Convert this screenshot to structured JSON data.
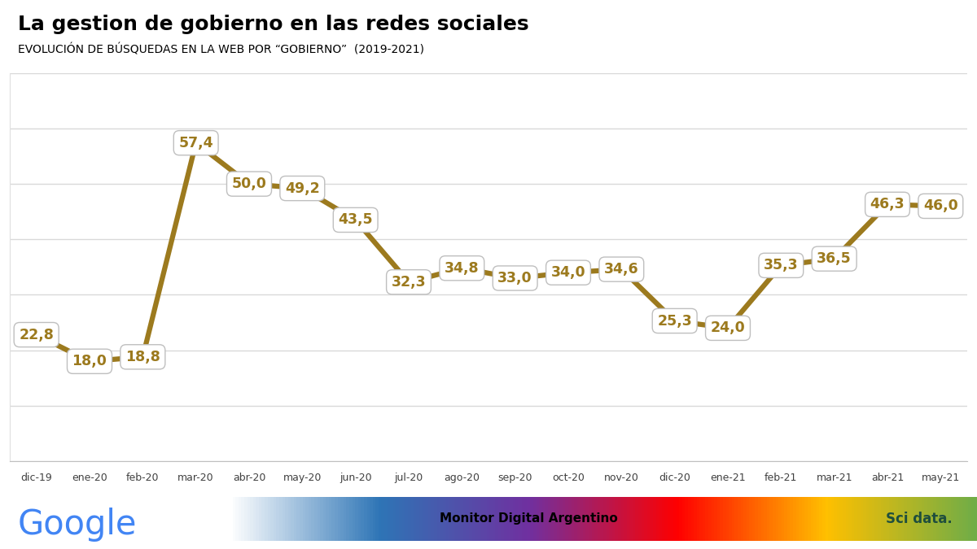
{
  "chart_data": {
    "type": "line",
    "title": "La gestion de gobierno en las redes sociales",
    "subtitle": "EVOLUCIÓN DE BÚSQUEDAS EN LA WEB POR “GOBIERNO”  (2019-2021)",
    "categories": [
      "dic-19",
      "ene-20",
      "feb-20",
      "mar-20",
      "abr-20",
      "may-20",
      "jun-20",
      "jul-20",
      "ago-20",
      "sep-20",
      "oct-20",
      "nov-20",
      "dic-20",
      "ene-21",
      "feb-21",
      "mar-21",
      "abr-21",
      "may-21"
    ],
    "values": [
      22.8,
      18.0,
      18.8,
      57.4,
      50.0,
      49.2,
      43.5,
      32.3,
      34.8,
      33.0,
      34.0,
      34.6,
      25.3,
      24.0,
      35.3,
      36.5,
      46.3,
      46.0
    ],
    "value_labels": [
      "22,8",
      "18,0",
      "18,8",
      "57,4",
      "50,0",
      "49,2",
      "43,5",
      "32,3",
      "34,8",
      "33,0",
      "34,0",
      "34,6",
      "25,3",
      "24,0",
      "35,3",
      "36,5",
      "46,3",
      "46,0"
    ],
    "color": "#9C7A1E",
    "ylim": [
      0,
      70
    ],
    "yticks": [
      0,
      10,
      20,
      30,
      40,
      50,
      60,
      70
    ],
    "grid": true,
    "data_labels": true,
    "tick_labels": "x",
    "annotations": [
      "Google",
      "Monitor Digital Argentino",
      "Sci data."
    ]
  }
}
